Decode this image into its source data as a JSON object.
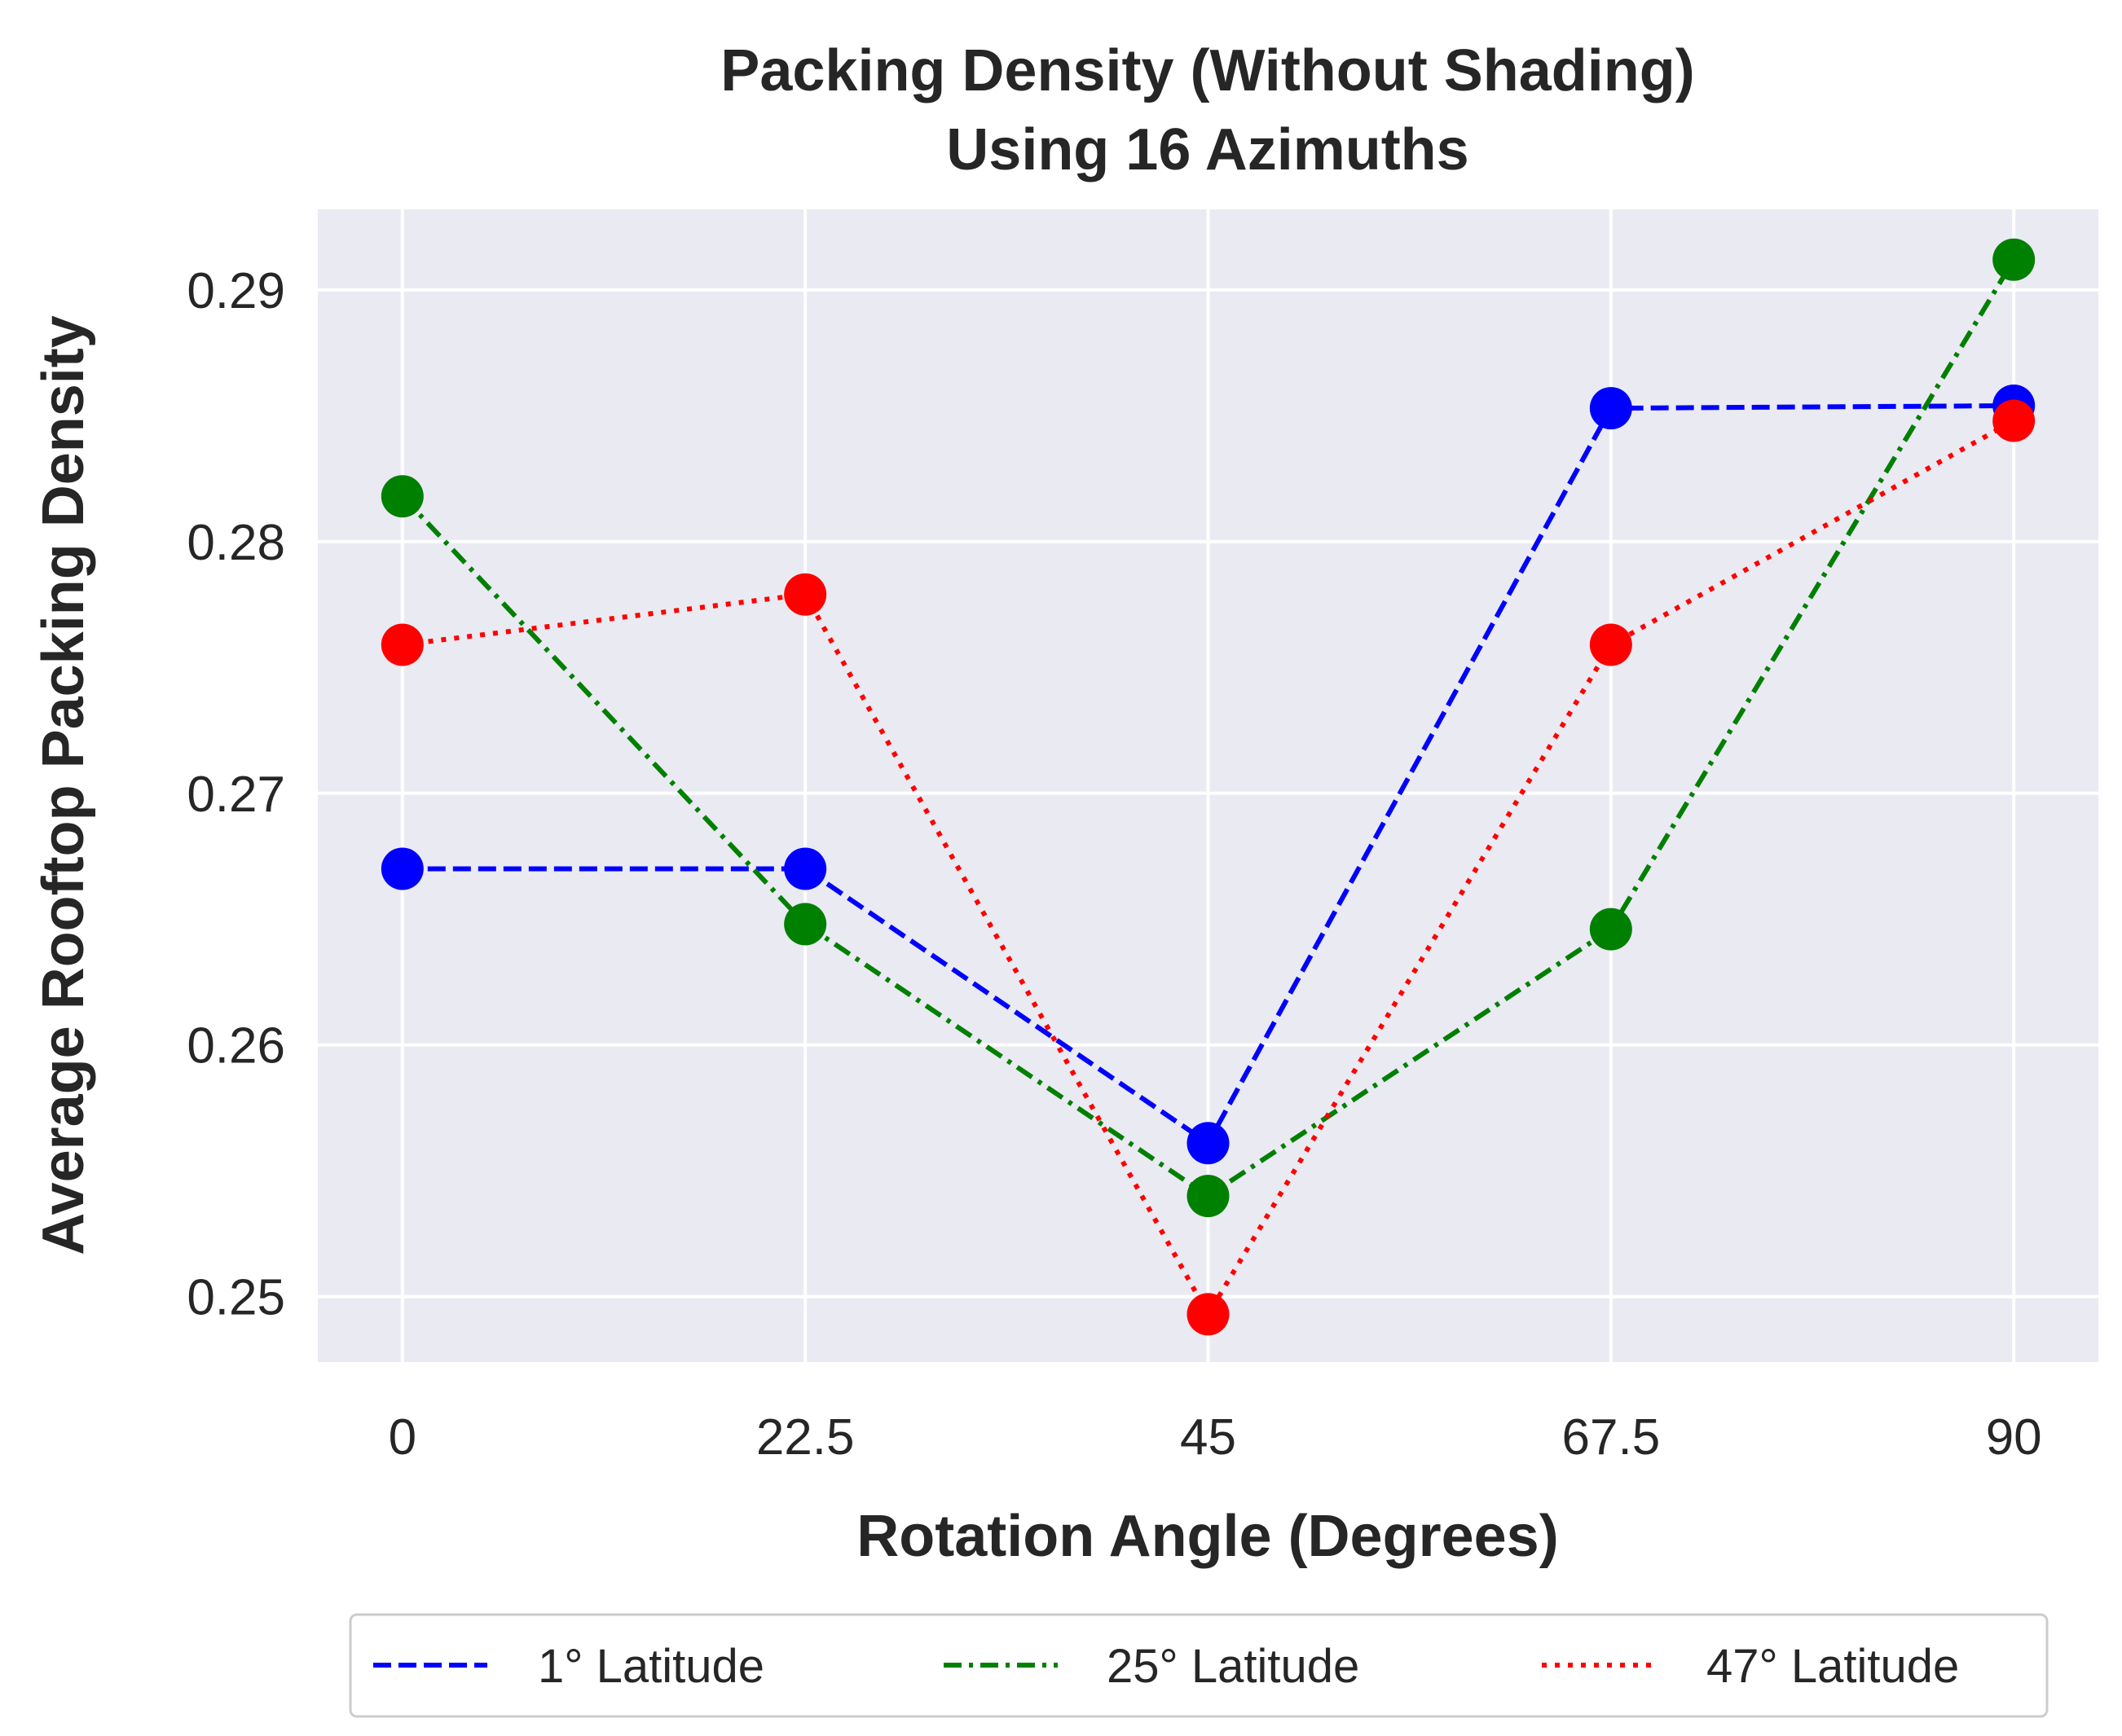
{
  "chart_data": {
    "type": "line",
    "title_lines": [
      "Packing Density (Without Shading)",
      "Using 16 Azimuths"
    ],
    "xlabel": "Rotation Angle (Degrees)",
    "ylabel": "Average Rooftop Packing Density",
    "x": [
      0,
      22.5,
      45,
      67.5,
      90
    ],
    "x_tick_labels": [
      "0",
      "22.5",
      "45",
      "67.5",
      "90"
    ],
    "y_ticks": [
      0.25,
      0.26,
      0.27,
      0.28,
      0.29
    ],
    "y_tick_labels": [
      "0.25",
      "0.26",
      "0.27",
      "0.28",
      "0.29"
    ],
    "xlim": [
      -4.725,
      94.725
    ],
    "ylim": [
      0.2474,
      0.2932
    ],
    "grid": true,
    "legend_position": "bottom-center",
    "series": [
      {
        "name": "1° Latitude",
        "label": "1° Latitude",
        "color": "#0000ff",
        "style": "dashed",
        "values": [
          0.267,
          0.267,
          0.2561,
          0.2853,
          0.2854
        ]
      },
      {
        "name": "25° Latitude",
        "label": "25° Latitude",
        "color": "#008000",
        "style": "dashdot",
        "values": [
          0.2818,
          0.2648,
          0.254,
          0.2646,
          0.2912
        ]
      },
      {
        "name": "47° Latitude",
        "label": "47° Latitude",
        "color": "#ff0000",
        "style": "dotted",
        "values": [
          0.2759,
          0.2779,
          0.2493,
          0.2759,
          0.2848
        ]
      }
    ]
  }
}
